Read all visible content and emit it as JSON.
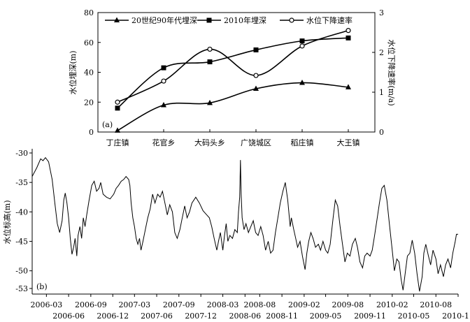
{
  "chart_data": [
    {
      "type": "line",
      "panel_label": "(a)",
      "categories": [
        "丁庄镇",
        "花官乡",
        "大码头乡",
        "广饶城区",
        "稻庄镇",
        "大王镇"
      ],
      "ylabel": "水位埋深(m)",
      "ylim": [
        0,
        80
      ],
      "yticks": [
        0,
        20,
        40,
        60,
        80
      ],
      "ylabel_right": "水位下降速率(m/a)",
      "ylim_right": [
        0,
        3
      ],
      "yticks_right": [
        0,
        1,
        2,
        3
      ],
      "legend_position": "top",
      "grid": false,
      "series": [
        {
          "name": "20世纪90年代埋深",
          "marker": "triangle",
          "axis": "left",
          "values": [
            1,
            18,
            19.5,
            29,
            33,
            30
          ]
        },
        {
          "name": "2010年埋深",
          "marker": "square",
          "axis": "left",
          "values": [
            16,
            43,
            47,
            55,
            61,
            63
          ]
        },
        {
          "name": "水位下降速率",
          "marker": "circle-open",
          "axis": "right",
          "values": [
            0.75,
            1.28,
            2.08,
            1.42,
            2.16,
            2.55
          ]
        }
      ]
    },
    {
      "type": "line",
      "panel_label": "(b)",
      "ylabel": "水位标高(m)",
      "ylim": [
        -54,
        -29
      ],
      "yticks": [
        -30,
        -35,
        -40,
        -45,
        -50,
        -53
      ],
      "xlim": [
        "2006-01",
        "2010-11"
      ],
      "xticks_top_row": [
        "2006-03",
        "2006-09",
        "2007-03",
        "2007-09",
        "2008-03",
        "2008-08",
        "2009-02",
        "2009-08",
        "2010-02",
        "2010-08"
      ],
      "xticks_bottom_row": [
        "2006-06",
        "2006-12",
        "2007-06",
        "2007-12",
        "2008-06",
        "2008-11",
        "2009-05",
        "2009-11",
        "2010-05",
        "2010-11"
      ],
      "grid": false,
      "series": [
        {
          "points": [
            [
              "2006-01-01",
              -34.0
            ],
            [
              "2006-01-20",
              -32.5
            ],
            [
              "2006-02-05",
              -31.0
            ],
            [
              "2006-02-15",
              -31.3
            ],
            [
              "2006-02-25",
              -30.8
            ],
            [
              "2006-03-10",
              -31.5
            ],
            [
              "2006-03-25",
              -34.5
            ],
            [
              "2006-04-05",
              -38.5
            ],
            [
              "2006-04-15",
              -42.0
            ],
            [
              "2006-04-25",
              -43.5
            ],
            [
              "2006-05-05",
              -41.5
            ],
            [
              "2006-05-12",
              -38.0
            ],
            [
              "2006-05-18",
              -36.8
            ],
            [
              "2006-05-25",
              -38.5
            ],
            [
              "2006-06-01",
              -41.0
            ],
            [
              "2006-06-08",
              -44.5
            ],
            [
              "2006-06-15",
              -47.2
            ],
            [
              "2006-06-22",
              -46.0
            ],
            [
              "2006-06-28",
              -44.5
            ],
            [
              "2006-07-05",
              -47.5
            ],
            [
              "2006-07-10",
              -44.0
            ],
            [
              "2006-07-18",
              -42.5
            ],
            [
              "2006-07-25",
              -44.5
            ],
            [
              "2006-08-01",
              -41.0
            ],
            [
              "2006-08-08",
              -42.5
            ],
            [
              "2006-08-15",
              -40.5
            ],
            [
              "2006-08-25",
              -38.0
            ],
            [
              "2006-09-05",
              -35.5
            ],
            [
              "2006-09-15",
              -34.8
            ],
            [
              "2006-09-25",
              -36.5
            ],
            [
              "2006-10-05",
              -36.0
            ],
            [
              "2006-10-12",
              -35.0
            ],
            [
              "2006-10-22",
              -37.0
            ],
            [
              "2006-11-05",
              -37.5
            ],
            [
              "2006-11-20",
              -37.8
            ],
            [
              "2006-12-05",
              -37.0
            ],
            [
              "2006-12-15",
              -36.0
            ],
            [
              "2006-12-25",
              -35.5
            ],
            [
              "2007-01-05",
              -34.8
            ],
            [
              "2007-01-15",
              -34.5
            ],
            [
              "2007-01-25",
              -34.0
            ],
            [
              "2007-02-05",
              -34.5
            ],
            [
              "2007-02-10",
              -35.5
            ],
            [
              "2007-02-15",
              -38.5
            ],
            [
              "2007-02-22",
              -41.0
            ],
            [
              "2007-03-01",
              -42.5
            ],
            [
              "2007-03-08",
              -44.5
            ],
            [
              "2007-03-15",
              -45.5
            ],
            [
              "2007-03-22",
              -44.5
            ],
            [
              "2007-03-28",
              -46.5
            ],
            [
              "2007-04-05",
              -45.0
            ],
            [
              "2007-04-15",
              -43.0
            ],
            [
              "2007-04-25",
              -41.0
            ],
            [
              "2007-05-05",
              -39.5
            ],
            [
              "2007-05-15",
              -37.0
            ],
            [
              "2007-05-25",
              -38.5
            ],
            [
              "2007-06-05",
              -37.0
            ],
            [
              "2007-06-15",
              -37.5
            ],
            [
              "2007-06-25",
              -36.5
            ],
            [
              "2007-07-05",
              -38.5
            ],
            [
              "2007-07-15",
              -40.5
            ],
            [
              "2007-07-25",
              -38.8
            ],
            [
              "2007-08-05",
              -40.0
            ],
            [
              "2007-08-15",
              -43.5
            ],
            [
              "2007-08-25",
              -44.5
            ],
            [
              "2007-09-05",
              -43.0
            ],
            [
              "2007-09-15",
              -41.0
            ],
            [
              "2007-09-25",
              -39.0
            ],
            [
              "2007-10-05",
              -41.0
            ],
            [
              "2007-10-15",
              -40.0
            ],
            [
              "2007-10-25",
              -38.5
            ],
            [
              "2007-11-10",
              -37.5
            ],
            [
              "2007-11-25",
              -38.5
            ],
            [
              "2007-12-10",
              -39.8
            ],
            [
              "2007-12-25",
              -40.5
            ],
            [
              "2008-01-05",
              -41.0
            ],
            [
              "2008-01-15",
              -42.5
            ],
            [
              "2008-01-25",
              -44.5
            ],
            [
              "2008-02-05",
              -46.5
            ],
            [
              "2008-02-12",
              -45.0
            ],
            [
              "2008-02-20",
              -43.5
            ],
            [
              "2008-03-01",
              -46.5
            ],
            [
              "2008-03-08",
              -44.0
            ],
            [
              "2008-03-15",
              -42.0
            ],
            [
              "2008-03-22",
              -45.0
            ],
            [
              "2008-03-30",
              -44.0
            ],
            [
              "2008-04-10",
              -44.5
            ],
            [
              "2008-04-20",
              -43.0
            ],
            [
              "2008-04-30",
              -43.5
            ],
            [
              "2008-05-05",
              -40.0
            ],
            [
              "2008-05-10",
              -37.5
            ],
            [
              "2008-05-13",
              -31.2
            ],
            [
              "2008-05-16",
              -37.0
            ],
            [
              "2008-05-20",
              -41.0
            ],
            [
              "2008-05-28",
              -43.0
            ],
            [
              "2008-06-05",
              -42.0
            ],
            [
              "2008-06-15",
              -43.5
            ],
            [
              "2008-06-25",
              -42.5
            ],
            [
              "2008-07-05",
              -41.5
            ],
            [
              "2008-07-15",
              -43.5
            ],
            [
              "2008-07-25",
              -44.0
            ],
            [
              "2008-08-05",
              -42.5
            ],
            [
              "2008-08-15",
              -44.0
            ],
            [
              "2008-08-25",
              -46.5
            ],
            [
              "2008-09-05",
              -45.0
            ],
            [
              "2008-09-15",
              -47.0
            ],
            [
              "2008-09-25",
              -46.5
            ],
            [
              "2008-10-05",
              -43.5
            ],
            [
              "2008-10-15",
              -41.0
            ],
            [
              "2008-10-25",
              -38.5
            ],
            [
              "2008-11-05",
              -36.5
            ],
            [
              "2008-11-15",
              -35.0
            ],
            [
              "2008-11-25",
              -38.0
            ],
            [
              "2008-12-05",
              -42.5
            ],
            [
              "2008-12-10",
              -41.0
            ],
            [
              "2008-12-20",
              -43.0
            ],
            [
              "2008-12-28",
              -44.5
            ],
            [
              "2009-01-05",
              -46.0
            ],
            [
              "2009-01-15",
              -45.0
            ],
            [
              "2009-01-25",
              -47.5
            ],
            [
              "2009-02-05",
              -49.8
            ],
            [
              "2009-02-12",
              -47.0
            ],
            [
              "2009-02-20",
              -45.0
            ],
            [
              "2009-03-01",
              -43.5
            ],
            [
              "2009-03-10",
              -44.5
            ],
            [
              "2009-03-20",
              -46.0
            ],
            [
              "2009-04-01",
              -45.5
            ],
            [
              "2009-04-10",
              -46.5
            ],
            [
              "2009-04-20",
              -45.0
            ],
            [
              "2009-05-01",
              -46.5
            ],
            [
              "2009-05-10",
              -47.0
            ],
            [
              "2009-05-20",
              -45.5
            ],
            [
              "2009-06-01",
              -41.0
            ],
            [
              "2009-06-10",
              -38.0
            ],
            [
              "2009-06-20",
              -39.0
            ],
            [
              "2009-06-30",
              -42.5
            ],
            [
              "2009-07-10",
              -45.5
            ],
            [
              "2009-07-20",
              -48.5
            ],
            [
              "2009-07-30",
              -47.0
            ],
            [
              "2009-08-10",
              -47.5
            ],
            [
              "2009-08-20",
              -45.5
            ],
            [
              "2009-09-01",
              -44.5
            ],
            [
              "2009-09-10",
              -46.0
            ],
            [
              "2009-09-20",
              -48.5
            ],
            [
              "2009-10-01",
              -49.5
            ],
            [
              "2009-10-10",
              -47.5
            ],
            [
              "2009-10-20",
              -47.0
            ],
            [
              "2009-11-01",
              -47.5
            ],
            [
              "2009-11-10",
              -46.5
            ],
            [
              "2009-11-20",
              -44.0
            ],
            [
              "2009-12-01",
              -41.0
            ],
            [
              "2009-12-10",
              -38.5
            ],
            [
              "2009-12-20",
              -36.0
            ],
            [
              "2009-12-30",
              -35.5
            ],
            [
              "2010-01-10",
              -38.0
            ],
            [
              "2010-01-20",
              -42.0
            ],
            [
              "2010-02-01",
              -46.5
            ],
            [
              "2010-02-10",
              -50.0
            ],
            [
              "2010-02-20",
              -48.0
            ],
            [
              "2010-03-01",
              -48.5
            ],
            [
              "2010-03-10",
              -51.5
            ],
            [
              "2010-03-18",
              -53.3
            ],
            [
              "2010-03-28",
              -50.0
            ],
            [
              "2010-04-05",
              -47.5
            ],
            [
              "2010-04-15",
              -47.0
            ],
            [
              "2010-04-25",
              -44.8
            ],
            [
              "2010-05-05",
              -47.0
            ],
            [
              "2010-05-15",
              -50.5
            ],
            [
              "2010-05-25",
              -53.5
            ],
            [
              "2010-06-05",
              -51.0
            ],
            [
              "2010-06-12",
              -47.0
            ],
            [
              "2010-06-20",
              -45.5
            ],
            [
              "2010-07-01",
              -47.5
            ],
            [
              "2010-07-10",
              -49.0
            ],
            [
              "2010-07-20",
              -46.5
            ],
            [
              "2010-08-01",
              -48.0
            ],
            [
              "2010-08-10",
              -50.5
            ],
            [
              "2010-08-20",
              -49.0
            ],
            [
              "2010-09-01",
              -51.0
            ],
            [
              "2010-09-10",
              -49.0
            ],
            [
              "2010-09-20",
              -48.0
            ],
            [
              "2010-10-01",
              -49.5
            ],
            [
              "2010-10-10",
              -47.0
            ],
            [
              "2010-10-20",
              -45.0
            ],
            [
              "2010-10-25",
              -43.8
            ],
            [
              "2010-11-01",
              -43.8
            ]
          ]
        }
      ]
    }
  ]
}
